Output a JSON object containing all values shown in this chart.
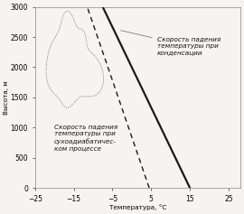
{
  "xlabel": "Температура, °C",
  "ylabel": "Высота, м",
  "xlim": [
    -25,
    28
  ],
  "ylim": [
    0,
    3000
  ],
  "xticks": [
    -25,
    -15,
    -5,
    5,
    15,
    25
  ],
  "yticks": [
    0,
    500,
    1000,
    1500,
    2000,
    2500,
    3000
  ],
  "bg_color": "#f5f4f0",
  "solid_line": {
    "x0": 15.0,
    "x1": -7.5,
    "y0": 0,
    "y1": 3000,
    "color": "#1a1a1a",
    "lw": 1.6
  },
  "dashed_line": {
    "x0": 4.5,
    "x1": -11.5,
    "y0": 0,
    "y1": 3000,
    "color": "#1a1a1a",
    "lw": 1.0
  },
  "annotation_condensation": "Скорость падения\nтемпературы при\nконденсации",
  "annotation_dry": "Скорость падения\nтемпературы при\nсухоадиабатичес-\nком процессе",
  "font_size": 5.2,
  "tick_font_size": 5.5,
  "cloud_color": "#555555",
  "cloud_lw": 0.6
}
